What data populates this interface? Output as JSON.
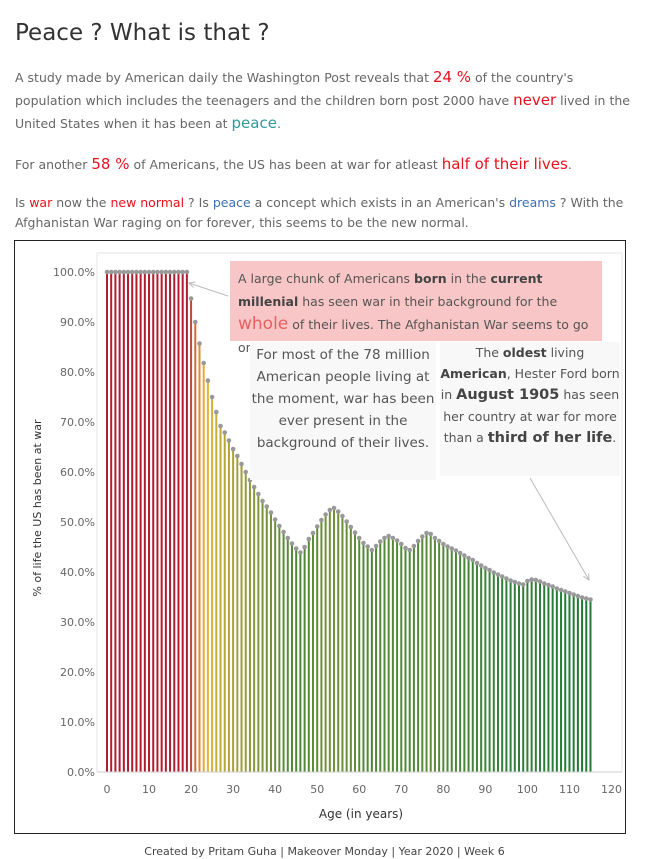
{
  "header": {
    "title": "Peace ? What is that ?"
  },
  "intro": {
    "p1_a": "A study made by American daily the Washington Post reveals that ",
    "p1_pct": "24 %",
    "p1_b": " of the country's population which includes the teenagers and the children born post 2000 have ",
    "p1_never": "never",
    "p1_c": " lived in the United States when it has been at ",
    "p1_peace": "peace",
    "p1_d": ".",
    "p2_a": "For another ",
    "p2_pct": "58 %",
    "p2_b": " of Americans, the US has been at war for atleast ",
    "p2_half": "half of their lives",
    "p2_c": ".",
    "p3_a": "Is ",
    "p3_war": "war",
    "p3_b": " now the ",
    "p3_new": "new normal",
    "p3_c": " ? Is ",
    "p3_peace": "peace",
    "p3_d": " a concept which exists in an American's ",
    "p3_dreams": "dreams",
    "p3_e": " ? With the Afghanistan War raging on for forever, this seems to be the new normal."
  },
  "annotations": {
    "a1_a": "A large chunk of Americans ",
    "a1_born": "born",
    "a1_b": " in the ",
    "a1_current": "current millenial",
    "a1_c": " has seen war in their background for the ",
    "a1_whole": "whole",
    "a1_d": " of their lives. The Afghanistan War seems to go on forever.",
    "a2": "For most of the 78 million American people living at the moment, war has been ever present in the background of their lives.",
    "a3_a": "The ",
    "a3_oldest": "oldest",
    "a3_b": " living ",
    "a3_american": "American",
    "a3_c": ", Hester Ford born in ",
    "a3_aug": "August 1905",
    "a3_d": " has seen her country at war for more than a ",
    "a3_third": "third of her life",
    "a3_e": "."
  },
  "footer": {
    "credit": "Created by Pritam Guha | Makeover Monday | Year 2020 | Week 6"
  },
  "chart_data": {
    "type": "bar",
    "title": "",
    "xlabel": "Age (in years)",
    "ylabel": "% of life the US has been at war",
    "xlim": [
      0,
      120
    ],
    "ylim": [
      0,
      100
    ],
    "x_ticks": [
      "0",
      "10",
      "20",
      "30",
      "40",
      "50",
      "60",
      "70",
      "80",
      "90",
      "100",
      "110",
      "120"
    ],
    "y_ticks": [
      "0.0%",
      "10.0%",
      "20.0%",
      "30.0%",
      "40.0%",
      "50.0%",
      "60.0%",
      "70.0%",
      "80.0%",
      "90.0%",
      "100.0%"
    ],
    "color_low": "#1f7a36",
    "color_mid": "#f0b537",
    "color_high": "#b01c2e",
    "marker_color": "#999999",
    "ages": [
      0,
      1,
      2,
      3,
      4,
      5,
      6,
      7,
      8,
      9,
      10,
      11,
      12,
      13,
      14,
      15,
      16,
      17,
      18,
      19,
      20,
      21,
      22,
      23,
      24,
      25,
      26,
      27,
      28,
      29,
      30,
      31,
      32,
      33,
      34,
      35,
      36,
      37,
      38,
      39,
      40,
      41,
      42,
      43,
      44,
      45,
      46,
      47,
      48,
      49,
      50,
      51,
      52,
      53,
      54,
      55,
      56,
      57,
      58,
      59,
      60,
      61,
      62,
      63,
      64,
      65,
      66,
      67,
      68,
      69,
      70,
      71,
      72,
      73,
      74,
      75,
      76,
      77,
      78,
      79,
      80,
      81,
      82,
      83,
      84,
      85,
      86,
      87,
      88,
      89,
      90,
      91,
      92,
      93,
      94,
      95,
      96,
      97,
      98,
      99,
      100,
      101,
      102,
      103,
      104,
      105,
      106,
      107,
      108,
      109,
      110,
      111,
      112,
      113,
      114,
      115
    ],
    "values": [
      100,
      100,
      100,
      100,
      100,
      100,
      100,
      100,
      100,
      100,
      100,
      100,
      100,
      100,
      100,
      100,
      100,
      100,
      100,
      100,
      94.7,
      90,
      85.7,
      81.8,
      78.3,
      75,
      72,
      69.2,
      67.9,
      66.3,
      64.6,
      63.2,
      61.6,
      60,
      58.4,
      57,
      55.6,
      54.2,
      53.1,
      51.9,
      50.5,
      49.2,
      48,
      46.8,
      45.7,
      44.7,
      43.9,
      45,
      46.6,
      47.8,
      49.1,
      50.4,
      51.5,
      52.4,
      52.8,
      52.1,
      51.2,
      50.1,
      49,
      47.9,
      46.8,
      45.8,
      45.1,
      44.4,
      45.2,
      46.1,
      46.8,
      47.2,
      46.8,
      46.3,
      45.6,
      44.8,
      44.4,
      45.2,
      46.2,
      47.1,
      47.8,
      47.6,
      46.8,
      46.2,
      45.6,
      45.1,
      44.7,
      44.3,
      43.8,
      43.3,
      42.8,
      42.4,
      41.8,
      41.3,
      40.8,
      40.4,
      39.9,
      39.5,
      39.1,
      38.7,
      38.3,
      38,
      37.7,
      37.5,
      38.2,
      38.5,
      38.4,
      38.1,
      37.7,
      37.4,
      37.1,
      36.7,
      36.4,
      36.1,
      35.8,
      35.5,
      35.2,
      34.9,
      34.7,
      34.5
    ]
  }
}
